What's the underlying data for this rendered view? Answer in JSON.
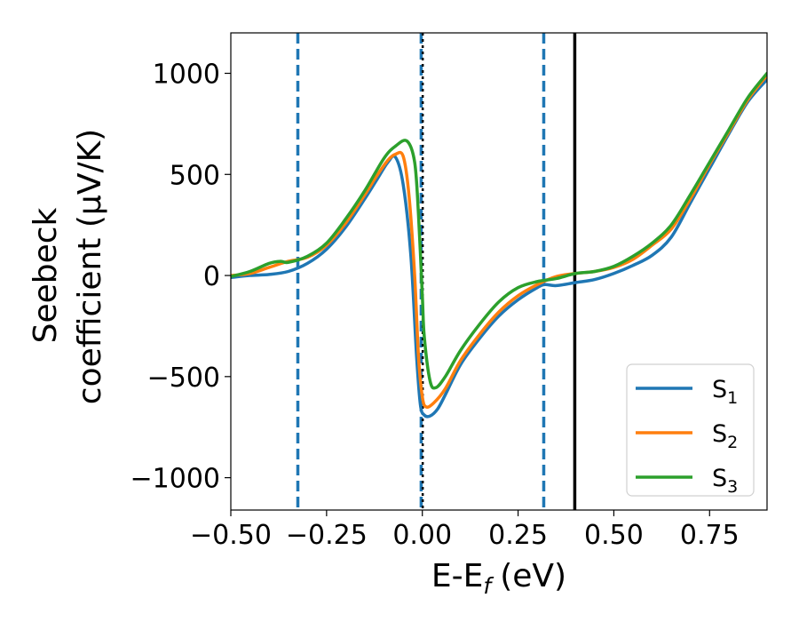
{
  "chart_data": {
    "type": "line",
    "xlabel": "E-E",
    "xlabel_sub": "f",
    "xlabel_unit": "(eV)",
    "ylabel_line1": "Seebeck",
    "ylabel_line2": "coefficient  (μV/K)",
    "xlim": [
      -0.5,
      0.9
    ],
    "ylim": [
      -1160,
      1200
    ],
    "xticks": [
      -0.5,
      -0.25,
      0.0,
      0.25,
      0.5,
      0.75
    ],
    "xtick_labels": [
      "−0.50",
      "−0.25",
      "0.00",
      "0.25",
      "0.50",
      "0.75"
    ],
    "yticks": [
      -1000,
      -500,
      0,
      500,
      1000
    ],
    "ytick_labels": [
      "−1000",
      "−500",
      "0",
      "500",
      "1000"
    ],
    "legend_position": "lower-right",
    "series": [
      {
        "name": "S",
        "sub": "1",
        "color": "#1f77b4",
        "x": [
          -0.5,
          -0.45,
          -0.4,
          -0.35,
          -0.3,
          -0.25,
          -0.2,
          -0.15,
          -0.12,
          -0.09,
          -0.07,
          -0.05,
          -0.03,
          -0.015,
          -0.005,
          0.005,
          0.02,
          0.04,
          0.06,
          0.1,
          0.15,
          0.2,
          0.25,
          0.3,
          0.32,
          0.35,
          0.4,
          0.45,
          0.5,
          0.55,
          0.6,
          0.65,
          0.7,
          0.75,
          0.8,
          0.85,
          0.9
        ],
        "y": [
          -10,
          0,
          5,
          20,
          60,
          130,
          240,
          380,
          470,
          560,
          585,
          450,
          100,
          -400,
          -640,
          -690,
          -695,
          -660,
          -590,
          -440,
          -310,
          -200,
          -120,
          -60,
          -45,
          -50,
          -35,
          -20,
          10,
          50,
          100,
          190,
          360,
          530,
          700,
          860,
          970
        ]
      },
      {
        "name": "S",
        "sub": "2",
        "color": "#ff7f0e",
        "x": [
          -0.5,
          -0.45,
          -0.4,
          -0.35,
          -0.3,
          -0.25,
          -0.2,
          -0.15,
          -0.12,
          -0.09,
          -0.07,
          -0.05,
          -0.035,
          -0.02,
          -0.01,
          0.0,
          0.01,
          0.03,
          0.06,
          0.1,
          0.15,
          0.2,
          0.25,
          0.3,
          0.35,
          0.4,
          0.45,
          0.5,
          0.55,
          0.6,
          0.65,
          0.7,
          0.75,
          0.8,
          0.85,
          0.9
        ],
        "y": [
          0,
          10,
          40,
          70,
          90,
          150,
          260,
          400,
          490,
          570,
          600,
          590,
          400,
          0,
          -400,
          -600,
          -650,
          -630,
          -560,
          -420,
          -290,
          -180,
          -100,
          -45,
          -5,
          10,
          20,
          40,
          80,
          150,
          230,
          380,
          550,
          710,
          870,
          990
        ]
      },
      {
        "name": "S",
        "sub": "3",
        "color": "#2ca02c",
        "x": [
          -0.5,
          -0.45,
          -0.4,
          -0.37,
          -0.35,
          -0.3,
          -0.25,
          -0.2,
          -0.15,
          -0.1,
          -0.07,
          -0.04,
          -0.02,
          -0.01,
          0.0,
          0.005,
          0.02,
          0.035,
          0.06,
          0.1,
          0.15,
          0.2,
          0.25,
          0.3,
          0.35,
          0.4,
          0.45,
          0.5,
          0.55,
          0.6,
          0.65,
          0.7,
          0.75,
          0.8,
          0.85,
          0.9
        ],
        "y": [
          -5,
          20,
          60,
          70,
          65,
          95,
          160,
          280,
          420,
          580,
          640,
          665,
          560,
          300,
          -100,
          -300,
          -520,
          -555,
          -500,
          -370,
          -240,
          -130,
          -60,
          -30,
          -15,
          10,
          20,
          45,
          95,
          160,
          250,
          400,
          560,
          720,
          880,
          1000
        ]
      }
    ],
    "vlines": [
      {
        "x": -0.325,
        "style": "dashed",
        "color": "#1f77b4"
      },
      {
        "x": -0.003,
        "style": "dashed",
        "color": "#1f77b4"
      },
      {
        "x": 0.001,
        "style": "dotted",
        "color": "#000000"
      },
      {
        "x": 0.317,
        "style": "dashed",
        "color": "#1f77b4"
      },
      {
        "x": 0.398,
        "style": "solid",
        "color": "#000000"
      }
    ]
  }
}
